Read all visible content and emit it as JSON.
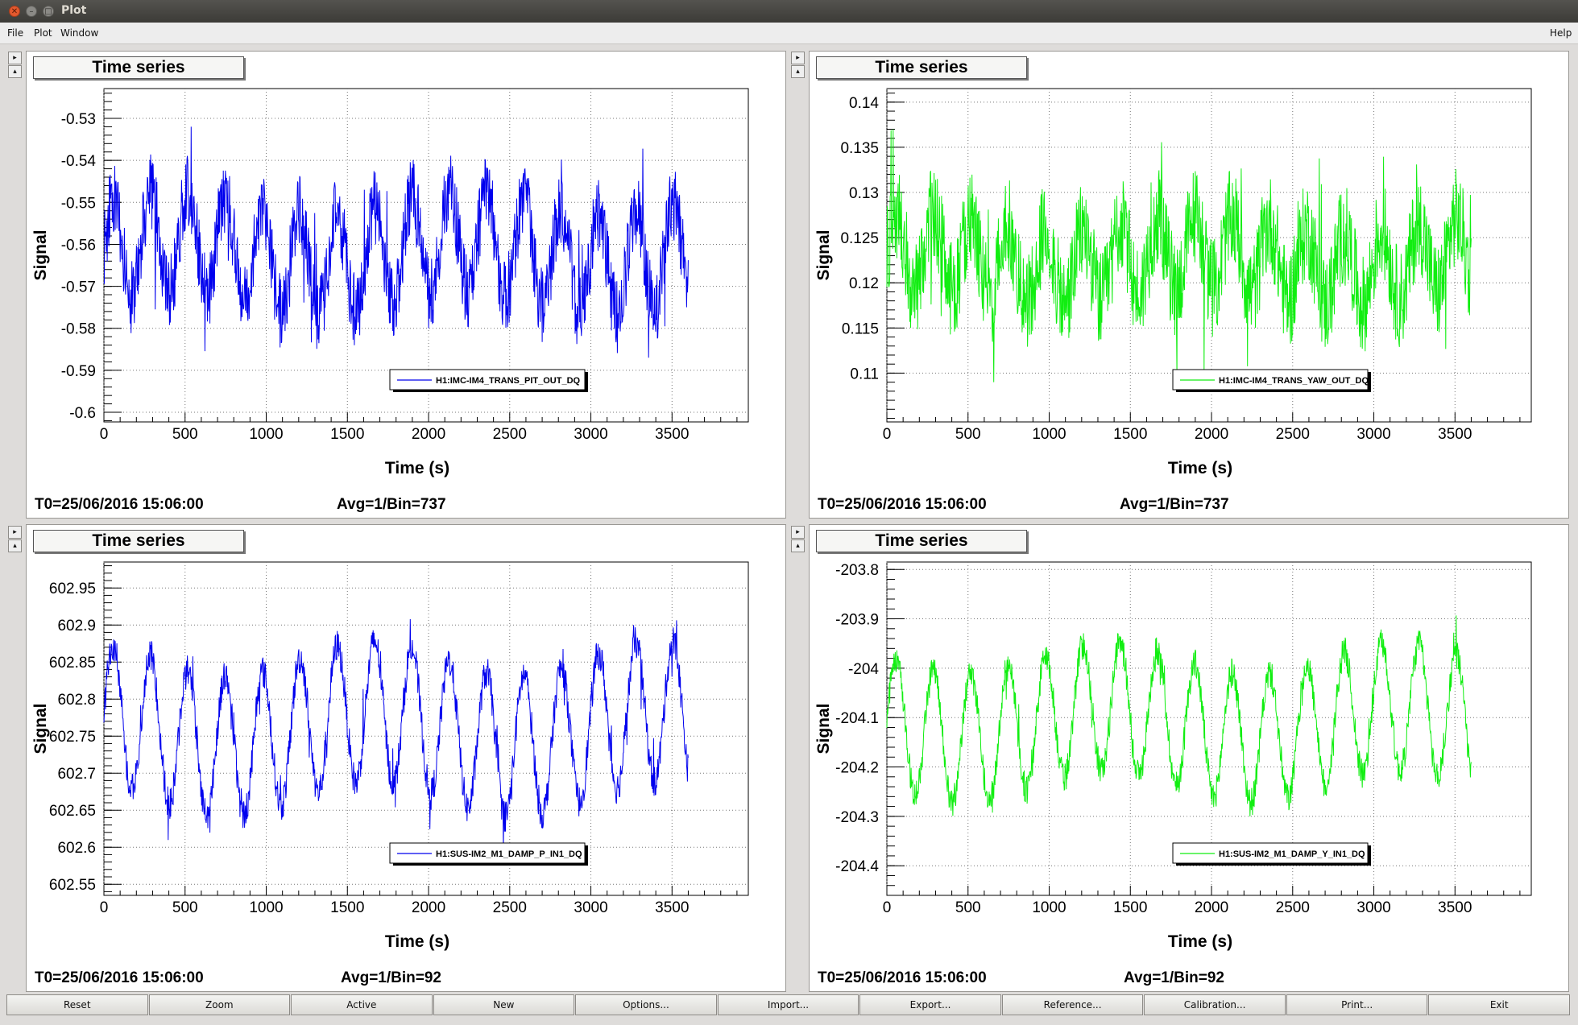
{
  "window": {
    "title": "Plot"
  },
  "menu": {
    "file": "File",
    "plot": "Plot",
    "window": "Window",
    "help": "Help"
  },
  "toolbar": [
    "Reset",
    "Zoom",
    "Active",
    "New",
    "Options...",
    "Import...",
    "Export...",
    "Reference...",
    "Calibration...",
    "Print...",
    "Exit"
  ],
  "panels": [
    {
      "tab": "Time series",
      "t0": "T0=25/06/2016 15:06:00",
      "avg": "Avg=1/Bin=737",
      "legend": "H1:IMC-IM4_TRANS_PIT_OUT_DQ",
      "color": "#0000ee"
    },
    {
      "tab": "Time series",
      "t0": "T0=25/06/2016 15:06:00",
      "avg": "Avg=1/Bin=737",
      "legend": "H1:IMC-IM4_TRANS_YAW_OUT_DQ",
      "color": "#11ee11"
    },
    {
      "tab": "Time series",
      "t0": "T0=25/06/2016 15:06:00",
      "avg": "Avg=1/Bin=92",
      "legend": "H1:SUS-IM2_M1_DAMP_P_IN1_DQ",
      "color": "#0000ee"
    },
    {
      "tab": "Time series",
      "t0": "T0=25/06/2016 15:06:00",
      "avg": "Avg=1/Bin=92",
      "legend": "H1:SUS-IM2_M1_DAMP_Y_IN1_DQ",
      "color": "#11ee11"
    }
  ],
  "chart_data": [
    {
      "type": "line",
      "xlabel": "Time (s)",
      "ylabel": "Signal",
      "xlim": [
        0,
        3970
      ],
      "ylim": [
        -0.6023,
        -0.5229
      ],
      "xticks": [
        0,
        500,
        1000,
        1500,
        2000,
        2500,
        3000,
        3500
      ],
      "yticks": [
        -0.53,
        -0.54,
        -0.55,
        -0.56,
        -0.57,
        -0.58,
        -0.59,
        -0.6
      ],
      "ytick_labels": [
        "-0.53",
        "-0.54",
        "-0.55",
        "-0.56",
        "-0.57",
        "-0.58",
        "-0.59",
        "-0.6"
      ],
      "grid": true,
      "legend_position": "bottom-right",
      "series": [
        {
          "name": "H1:IMC-IM4_TRANS_PIT_OUT_DQ",
          "x_range": [
            0,
            3600
          ],
          "mean": -0.562,
          "amplitude": 0.012,
          "period": 230,
          "noise": 0.009,
          "min": -0.595,
          "max": -0.532
        }
      ]
    },
    {
      "type": "line",
      "xlabel": "Time (s)",
      "ylabel": "Signal",
      "xlim": [
        0,
        3970
      ],
      "ylim": [
        0.1046,
        0.1415
      ],
      "xticks": [
        0,
        500,
        1000,
        1500,
        2000,
        2500,
        3000,
        3500
      ],
      "yticks": [
        0.14,
        0.135,
        0.13,
        0.125,
        0.12,
        0.115,
        0.11
      ],
      "ytick_labels": [
        "0.14",
        "0.135",
        "0.13",
        "0.125",
        "0.12",
        "0.115",
        "0.11"
      ],
      "grid": true,
      "legend_position": "bottom-right",
      "series": [
        {
          "name": "H1:IMC-IM4_TRANS_YAW_OUT_DQ",
          "x_range": [
            0,
            3600
          ],
          "mean": 0.1225,
          "amplitude": 0.004,
          "period": 230,
          "noise": 0.0055,
          "min": 0.109,
          "max": 0.138
        }
      ]
    },
    {
      "type": "line",
      "xlabel": "Time (s)",
      "ylabel": "Signal",
      "xlim": [
        0,
        3970
      ],
      "ylim": [
        602.535,
        602.985
      ],
      "xticks": [
        0,
        500,
        1000,
        1500,
        2000,
        2500,
        3000,
        3500
      ],
      "yticks": [
        602.95,
        602.9,
        602.85,
        602.8,
        602.75,
        602.7,
        602.65,
        602.6,
        602.55
      ],
      "ytick_labels": [
        "602.95",
        "602.9",
        "602.85",
        "602.8",
        "602.75",
        "602.7",
        "602.65",
        "602.6",
        "602.55"
      ],
      "grid": true,
      "legend_position": "bottom-right",
      "series": [
        {
          "name": "H1:SUS-IM2_M1_DAMP_P_IN1_DQ",
          "x_range": [
            0,
            3600
          ],
          "mean": 602.76,
          "amplitude": 0.095,
          "period": 230,
          "noise": 0.022,
          "min": 602.57,
          "max": 602.955
        }
      ]
    },
    {
      "type": "line",
      "xlabel": "Time (s)",
      "ylabel": "Signal",
      "xlim": [
        0,
        3970
      ],
      "ylim": [
        -204.46,
        -203.785
      ],
      "xticks": [
        0,
        500,
        1000,
        1500,
        2000,
        2500,
        3000,
        3500
      ],
      "yticks": [
        -203.8,
        -203.9,
        -204,
        -204.1,
        -204.2,
        -204.3,
        -204.4
      ],
      "ytick_labels": [
        "-203.8",
        "-203.9",
        "-204",
        "-204.1",
        "-204.2",
        "-204.3",
        "-204.4"
      ],
      "grid": true,
      "legend_position": "bottom-right",
      "series": [
        {
          "name": "H1:SUS-IM2_M1_DAMP_Y_IN1_DQ",
          "x_range": [
            0,
            3600
          ],
          "mean": -204.11,
          "amplitude": 0.13,
          "period": 230,
          "noise": 0.03,
          "min": -204.42,
          "max": -203.85
        }
      ]
    }
  ]
}
